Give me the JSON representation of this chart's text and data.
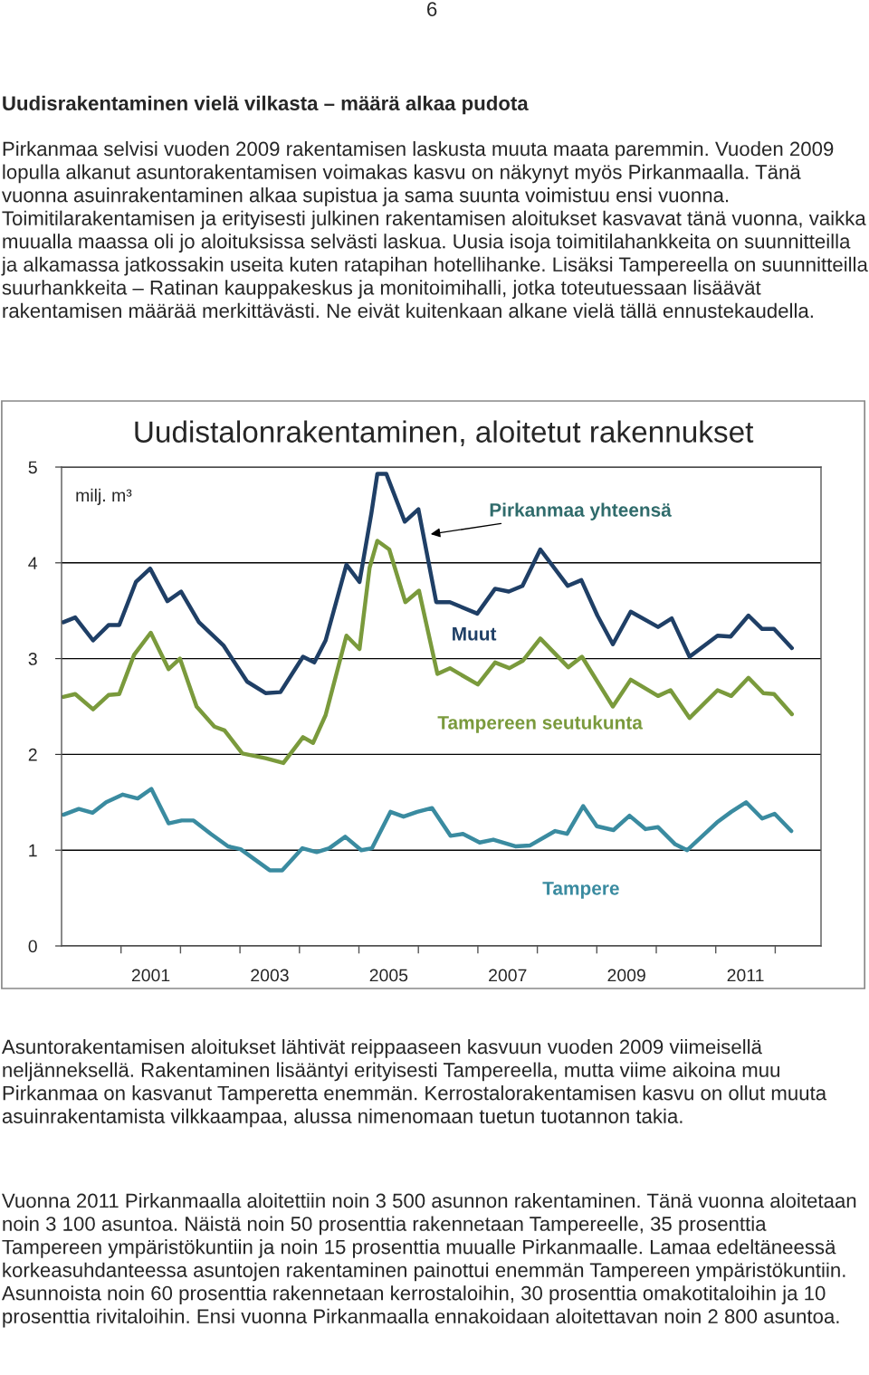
{
  "chart_data": {
    "type": "line",
    "title": "Uudistalonrakentaminen, aloitetut rakennukset",
    "ylabel": "milj. m³",
    "xlim": [
      2000,
      2012.77
    ],
    "xticks": [
      {
        "value": 2001,
        "label": null
      },
      {
        "value": 2002,
        "label": null
      },
      {
        "value": 2003,
        "label": null
      },
      {
        "value": 2004,
        "label": null
      },
      {
        "value": 2005,
        "label": null
      },
      {
        "value": 2006,
        "label": null
      },
      {
        "value": 2007,
        "label": null
      },
      {
        "value": 2008,
        "label": null
      },
      {
        "value": 2009,
        "label": null
      },
      {
        "value": 2010,
        "label": null
      },
      {
        "value": 2011,
        "label": null
      },
      {
        "value": 2012,
        "label": null
      },
      {
        "value": 2001.5,
        "label": "2001"
      },
      {
        "value": 2003.5,
        "label": "2003"
      },
      {
        "value": 2005.5,
        "label": "2005"
      },
      {
        "value": 2007.5,
        "label": "2007"
      },
      {
        "value": 2009.5,
        "label": "2009"
      },
      {
        "value": 2011.5,
        "label": "2011"
      }
    ],
    "ylim": [
      0,
      5
    ],
    "yticks": [
      0,
      1,
      2,
      3,
      4,
      5
    ],
    "grid": "y",
    "legend": false,
    "line_style": "solid",
    "marker": "none",
    "series": [
      {
        "name": "Pirkanmaa yhteensä",
        "color": "#1f3f66",
        "x": [
          2000.03,
          2000.23,
          2000.53,
          2000.79,
          2000.97,
          2001.25,
          2001.49,
          2001.78,
          2002.01,
          2002.31,
          2002.72,
          2003.12,
          2003.43,
          2003.68,
          2004.06,
          2004.25,
          2004.44,
          2004.79,
          2005.01,
          2005.21,
          2005.31,
          2005.46,
          2005.77,
          2006.0,
          2006.3,
          2006.53,
          2006.99,
          2007.29,
          2007.52,
          2007.75,
          2008.05,
          2008.51,
          2008.74,
          2009.01,
          2009.27,
          2009.57,
          2010.03,
          2010.26,
          2010.56,
          2011.03,
          2011.25,
          2011.55,
          2011.78,
          2011.98,
          2012.28
        ],
        "values": [
          3.38,
          3.43,
          3.19,
          3.35,
          3.35,
          3.8,
          3.94,
          3.6,
          3.7,
          3.38,
          3.14,
          2.76,
          2.64,
          2.65,
          3.02,
          2.96,
          3.19,
          3.98,
          3.8,
          4.52,
          4.93,
          4.93,
          4.43,
          4.56,
          3.59,
          3.59,
          3.47,
          3.73,
          3.7,
          3.76,
          4.14,
          3.76,
          3.82,
          3.45,
          3.15,
          3.49,
          3.33,
          3.42,
          3.02,
          3.24,
          3.23,
          3.45,
          3.31,
          3.31,
          3.11
        ]
      },
      {
        "name": "Tampereen seutukunta",
        "color": "#7a9a3c",
        "x": [
          2000.03,
          2000.23,
          2000.53,
          2000.79,
          2000.97,
          2001.22,
          2001.5,
          2001.8,
          2001.99,
          2002.27,
          2002.57,
          2002.74,
          2003.04,
          2003.43,
          2003.73,
          2004.06,
          2004.23,
          2004.44,
          2004.79,
          2005.01,
          2005.18,
          2005.31,
          2005.51,
          2005.78,
          2006.01,
          2006.32,
          2006.53,
          2007.0,
          2007.29,
          2007.53,
          2007.76,
          2008.05,
          2008.52,
          2008.75,
          2009.27,
          2009.57,
          2010.03,
          2010.24,
          2010.56,
          2011.03,
          2011.26,
          2011.55,
          2011.8,
          2011.98,
          2012.28
        ],
        "values": [
          2.6,
          2.63,
          2.47,
          2.62,
          2.63,
          3.04,
          3.27,
          2.89,
          3.0,
          2.5,
          2.29,
          2.25,
          2.01,
          1.96,
          1.91,
          2.18,
          2.12,
          2.41,
          3.24,
          3.1,
          3.95,
          4.23,
          4.14,
          3.59,
          3.71,
          2.84,
          2.9,
          2.73,
          2.96,
          2.9,
          2.98,
          3.21,
          2.91,
          3.02,
          2.5,
          2.78,
          2.61,
          2.67,
          2.38,
          2.67,
          2.61,
          2.8,
          2.64,
          2.63,
          2.42
        ]
      },
      {
        "name": "Tampere",
        "color": "#3a8ba0",
        "x": [
          2000.03,
          2000.29,
          2000.52,
          2000.75,
          2001.03,
          2001.28,
          2001.51,
          2001.8,
          2002.02,
          2002.22,
          2002.51,
          2002.8,
          2003.01,
          2003.5,
          2003.71,
          2004.05,
          2004.29,
          2004.5,
          2004.77,
          2005.04,
          2005.22,
          2005.53,
          2005.75,
          2005.98,
          2006.23,
          2006.54,
          2006.75,
          2007.03,
          2007.26,
          2007.63,
          2007.88,
          2008.3,
          2008.5,
          2008.77,
          2009.0,
          2009.28,
          2009.55,
          2009.82,
          2010.03,
          2010.32,
          2010.52,
          2011.02,
          2011.26,
          2011.51,
          2011.78,
          2011.99,
          2012.27
        ],
        "values": [
          1.37,
          1.43,
          1.39,
          1.5,
          1.58,
          1.54,
          1.64,
          1.28,
          1.31,
          1.31,
          1.17,
          1.04,
          1.01,
          0.79,
          0.79,
          1.02,
          0.98,
          1.02,
          1.14,
          1.0,
          1.02,
          1.4,
          1.35,
          1.4,
          1.44,
          1.15,
          1.17,
          1.08,
          1.11,
          1.04,
          1.05,
          1.2,
          1.17,
          1.46,
          1.25,
          1.21,
          1.36,
          1.22,
          1.24,
          1.06,
          1.0,
          1.29,
          1.4,
          1.5,
          1.33,
          1.38,
          1.2
        ]
      }
    ],
    "annotations": [
      "Muut",
      "6",
      "Uudisrakentaminen vielä vilkasta – määrä alkaa pudota",
      "Pirkanmaa selvisi vuoden 2009 rakentamisen laskusta muuta maata paremmin. Vuoden 2009 lopulla alkanut asuntorakentamisen voimakas kasvu on näkynyt myös Pirkanmaalla. Tänä vuonna asuinrakentaminen alkaa supistua ja sama suunta voimistuu ensi vuonna. Toimitilarakentamisen ja erityisesti julkinen rakentamisen aloitukset kasvavat tänä vuonna, vaikka muualla maassa oli jo aloituksissa selvästi laskua. Uusia isoja toimitilahankkeita on suunnitteilla ja alkamassa jatkossakin useita kuten ratapihan hotellihanke. Lisäksi Tampereella on suunnitteilla suurhankkeita – Ratinan kauppakeskus ja monitoimihalli, jotka toteutuessaan lisäävät rakentamisen määrää merkittävästi. Ne eivät kuitenkaan alkane vielä tällä ennustekaudella.",
      "Asuntorakentamisen aloitukset lähtivät reippaaseen kasvuun vuoden 2009 viimeisellä neljänneksellä. Rakentaminen lisääntyi erityisesti Tampereella, mutta viime aikoina muu Pirkanmaa on kasvanut Tamperetta enemmän. Kerrostalorakentamisen kasvu on ollut muuta asuinrakentamista vilkkaampaa, alussa nimenomaan tuetun tuotannon takia.",
      "Vuonna 2011 Pirkanmaalla aloitettiin noin 3 500 asunnon rakentaminen. Tänä vuonna aloitetaan noin 3 100 asuntoa. Näistä noin 50 prosenttia rakennetaan Tampereelle, 35 prosenttia Tampereen ympäristökuntiin ja noin 15 prosenttia muualle Pirkanmaalle. Lamaa edeltäneessä korkeasuhdanteessa asuntojen rakentaminen painottui enemmän Tampereen ympäristökuntiin. Asunnoista noin 60 prosenttia rakennetaan kerrostaloihin, 30 prosenttia omakotitaloihin ja 10 prosenttia rivitaloihin. Ensi vuonna Pirkanmaalla ennakoidaan aloitettavan noin 2 800 asuntoa."
    ]
  }
}
